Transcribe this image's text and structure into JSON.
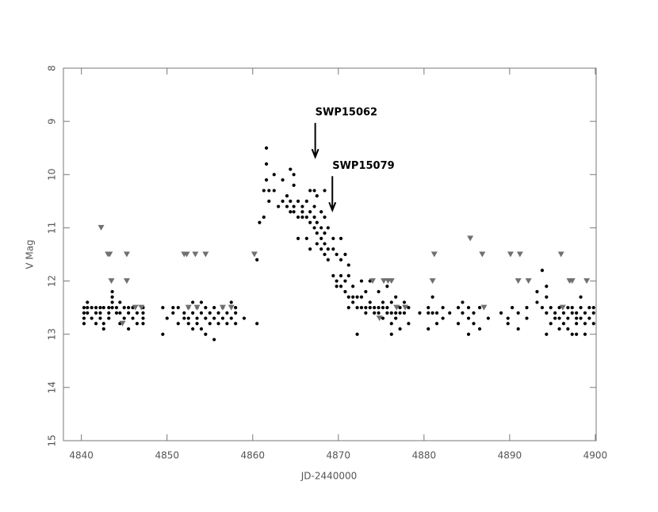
{
  "chart_data": {
    "type": "scatter",
    "xlabel": "JD-2440000",
    "ylabel": "V Mag",
    "xlim": [
      4837.9,
      4900.1
    ],
    "xticks": [
      4840,
      4850,
      4860,
      4870,
      4880,
      4890,
      4900
    ],
    "ylim": [
      8,
      15
    ],
    "yticks": [
      8,
      9,
      10,
      11,
      12,
      13,
      14,
      15
    ],
    "y_inverted": true,
    "annotations": [
      {
        "text": "SWP15062",
        "x": 4867.3,
        "y": 9.67
      },
      {
        "text": "SWP15079",
        "x": 4869.3,
        "y": 10.67
      }
    ],
    "series": [
      {
        "marker": "circle",
        "color": "#000000",
        "x": [
          4840.3,
          4840.3,
          4840.3,
          4840.3,
          4840.7,
          4840.7,
          4840.7,
          4841.2,
          4841.2,
          4841.7,
          4841.7,
          4841.7,
          4842.2,
          4842.2,
          4842.2,
          4842.6,
          4842.6,
          4842.6,
          4843.2,
          4843.2,
          4843.2,
          4843.6,
          4843.6,
          4843.6,
          4843.6,
          4844.1,
          4844.1,
          4844.5,
          4844.5,
          4844.5,
          4845.0,
          4845.0,
          4845.5,
          4845.5,
          4845.5,
          4846.0,
          4846.0,
          4846.5,
          4846.5,
          4847.2,
          4847.2,
          4847.2,
          4847.2,
          4849.5,
          4849.5,
          4850.0,
          4850.7,
          4850.7,
          4851.3,
          4851.3,
          4852.0,
          4852.0,
          4852.5,
          4852.5,
          4852.5,
          4853.0,
          4853.0,
          4853.0,
          4853.5,
          4853.5,
          4853.5,
          4854.0,
          4854.0,
          4854.0,
          4854.5,
          4854.5,
          4854.5,
          4855.0,
          4855.0,
          4855.5,
          4855.5,
          4855.5,
          4856.0,
          4856.0,
          4856.5,
          4856.5,
          4857.0,
          4857.0,
          4857.5,
          4857.5,
          4858.0,
          4858.0,
          4858.0,
          4859.0,
          4860.5,
          4860.5,
          4860.8,
          4861.3,
          4861.3,
          4861.6,
          4861.6,
          4861.6,
          4861.9,
          4861.9,
          4862.5,
          4862.5,
          4863.0,
          4863.5,
          4863.5,
          4864.0,
          4864.0,
          4864.4,
          4864.4,
          4864.4,
          4864.8,
          4864.8,
          4864.8,
          4864.8,
          4865.3,
          4865.3,
          4865.3,
          4865.8,
          4865.8,
          4865.8,
          4866.3,
          4866.3,
          4866.3,
          4866.7,
          4866.7,
          4866.7,
          4866.7,
          4867.2,
          4867.2,
          4867.2,
          4867.2,
          4867.5,
          4867.5,
          4867.5,
          4867.5,
          4868.0,
          4868.0,
          4868.0,
          4868.0,
          4868.4,
          4868.4,
          4868.4,
          4868.4,
          4868.4,
          4868.8,
          4868.8,
          4868.8,
          4869.4,
          4869.4,
          4869.4,
          4869.8,
          4869.8,
          4869.8,
          4870.3,
          4870.3,
          4870.3,
          4870.3,
          4870.8,
          4870.8,
          4870.8,
          4871.2,
          4871.2,
          4871.2,
          4871.2,
          4871.7,
          4871.7,
          4871.7,
          4872.2,
          4872.2,
          4872.2,
          4872.7,
          4872.7,
          4872.7,
          4873.2,
          4873.2,
          4873.2,
          4873.7,
          4873.7,
          4873.7,
          4874.2,
          4874.2,
          4874.7,
          4874.7,
          4874.7,
          4875.2,
          4875.2,
          4875.2,
          4875.7,
          4875.7,
          4875.7,
          4876.2,
          4876.2,
          4876.2,
          4876.2,
          4876.7,
          4876.7,
          4876.7,
          4877.2,
          4877.2,
          4877.2,
          4877.7,
          4877.7,
          4878.2,
          4878.2,
          4879.5,
          4880.5,
          4880.5,
          4880.5,
          4881.0,
          4881.0,
          4881.5,
          4881.5,
          4882.2,
          4882.2,
          4883.0,
          4884.0,
          4884.0,
          4884.5,
          4884.5,
          4885.2,
          4885.2,
          4885.2,
          4885.8,
          4885.8,
          4886.5,
          4886.5,
          4887.5,
          4889.0,
          4889.8,
          4889.8,
          4890.3,
          4891.0,
          4891.0,
          4892.0,
          4892.0,
          4893.2,
          4893.2,
          4893.8,
          4893.8,
          4894.3,
          4894.3,
          4894.3,
          4894.3,
          4894.8,
          4894.8,
          4895.3,
          4895.3,
          4895.8,
          4895.8,
          4895.8,
          4896.3,
          4896.3,
          4896.8,
          4896.8,
          4896.8,
          4897.3,
          4897.3,
          4897.3,
          4897.8,
          4897.8,
          4897.8,
          4897.8,
          4898.3,
          4898.3,
          4898.3,
          4898.8,
          4898.8,
          4898.8,
          4899.3,
          4899.3,
          4899.8,
          4899.8,
          4899.8
        ],
        "values": [
          12.5,
          12.6,
          12.7,
          12.8,
          12.4,
          12.5,
          12.6,
          12.5,
          12.7,
          12.5,
          12.6,
          12.8,
          12.5,
          12.6,
          12.7,
          12.5,
          12.8,
          12.9,
          12.5,
          12.6,
          12.7,
          12.2,
          12.3,
          12.4,
          12.5,
          12.5,
          12.6,
          12.4,
          12.6,
          12.8,
          12.5,
          12.7,
          12.5,
          12.6,
          12.9,
          12.5,
          12.7,
          12.6,
          12.8,
          12.5,
          12.6,
          12.7,
          12.8,
          12.5,
          13.0,
          12.7,
          12.5,
          12.6,
          12.5,
          12.8,
          12.6,
          12.7,
          12.5,
          12.7,
          12.8,
          12.4,
          12.6,
          12.9,
          12.5,
          12.7,
          12.8,
          12.4,
          12.6,
          12.9,
          12.5,
          12.7,
          13.0,
          12.6,
          12.8,
          12.5,
          12.7,
          13.1,
          12.6,
          12.8,
          12.5,
          12.7,
          12.6,
          12.8,
          12.4,
          12.7,
          12.5,
          12.6,
          12.8,
          12.7,
          11.6,
          12.8,
          10.9,
          10.8,
          10.3,
          9.5,
          9.8,
          10.1,
          10.3,
          10.5,
          10.0,
          10.3,
          10.6,
          10.1,
          10.5,
          10.4,
          10.6,
          9.9,
          10.5,
          10.7,
          10.0,
          10.2,
          10.6,
          10.7,
          10.5,
          10.8,
          11.2,
          10.6,
          10.7,
          10.8,
          10.5,
          10.8,
          11.2,
          10.3,
          10.7,
          10.9,
          11.4,
          10.3,
          10.6,
          10.8,
          11.0,
          10.4,
          10.9,
          11.1,
          11.3,
          10.7,
          11.0,
          11.2,
          11.4,
          10.3,
          10.8,
          11.1,
          11.3,
          11.5,
          11.0,
          11.4,
          11.6,
          11.2,
          11.4,
          11.9,
          11.5,
          12.0,
          12.1,
          11.2,
          11.6,
          11.9,
          12.1,
          11.5,
          12.0,
          12.2,
          11.7,
          11.9,
          12.3,
          12.5,
          12.1,
          12.3,
          12.4,
          12.3,
          12.5,
          13.0,
          12.0,
          12.3,
          12.5,
          12.2,
          12.5,
          12.6,
          12.0,
          12.5,
          12.4,
          12.5,
          12.6,
          12.2,
          12.5,
          12.6,
          12.4,
          12.5,
          12.7,
          12.1,
          12.5,
          12.6,
          12.4,
          12.6,
          12.8,
          13.0,
          12.3,
          12.6,
          12.7,
          12.5,
          12.6,
          12.9,
          12.4,
          12.6,
          12.5,
          12.8,
          12.6,
          12.5,
          12.6,
          12.9,
          12.3,
          12.6,
          12.6,
          12.8,
          12.5,
          12.7,
          12.6,
          12.5,
          12.8,
          12.4,
          12.6,
          12.5,
          12.7,
          13.0,
          12.6,
          12.8,
          12.5,
          12.9,
          12.7,
          12.6,
          12.7,
          12.8,
          12.5,
          12.6,
          12.9,
          12.5,
          12.7,
          12.2,
          12.4,
          11.8,
          12.5,
          12.1,
          12.3,
          12.6,
          13.0,
          12.5,
          12.8,
          12.6,
          12.7,
          12.5,
          12.7,
          12.9,
          12.6,
          12.8,
          12.5,
          12.7,
          12.9,
          12.5,
          12.6,
          13.0,
          12.6,
          12.7,
          12.8,
          13.0,
          12.3,
          12.5,
          12.7,
          12.6,
          12.8,
          13.0,
          12.5,
          12.7,
          12.5,
          12.6,
          12.8
        ]
      },
      {
        "marker": "triangle-down",
        "color": "#707070",
        "x": [
          4842.3,
          4843.1,
          4843.3,
          4843.5,
          4845.3,
          4845.3,
          4844.8,
          4846.3,
          4847.0,
          4852.0,
          4852.3,
          4853.3,
          4854.5,
          4852.5,
          4853.5,
          4856.5,
          4857.5,
          4860.2,
          4874.0,
          4874.8,
          4875.3,
          4875.8,
          4876.2,
          4876.8,
          4877.8,
          4881.0,
          4881.2,
          4885.4,
          4886.8,
          4887.0,
          4890.1,
          4891.0,
          4891.2,
          4892.2,
          4896.0,
          4896.2,
          4897.0,
          4897.3,
          4899.0
        ],
        "values": [
          11.0,
          11.5,
          11.5,
          12.0,
          11.5,
          12.0,
          12.8,
          12.5,
          12.5,
          11.5,
          11.5,
          11.5,
          11.5,
          12.5,
          12.5,
          12.5,
          12.5,
          11.5,
          12.0,
          12.7,
          12.0,
          12.0,
          12.0,
          12.5,
          12.5,
          12.0,
          11.5,
          11.2,
          11.5,
          12.5,
          11.5,
          12.0,
          11.5,
          12.0,
          11.5,
          12.5,
          12.0,
          12.0,
          12.0
        ]
      }
    ]
  }
}
